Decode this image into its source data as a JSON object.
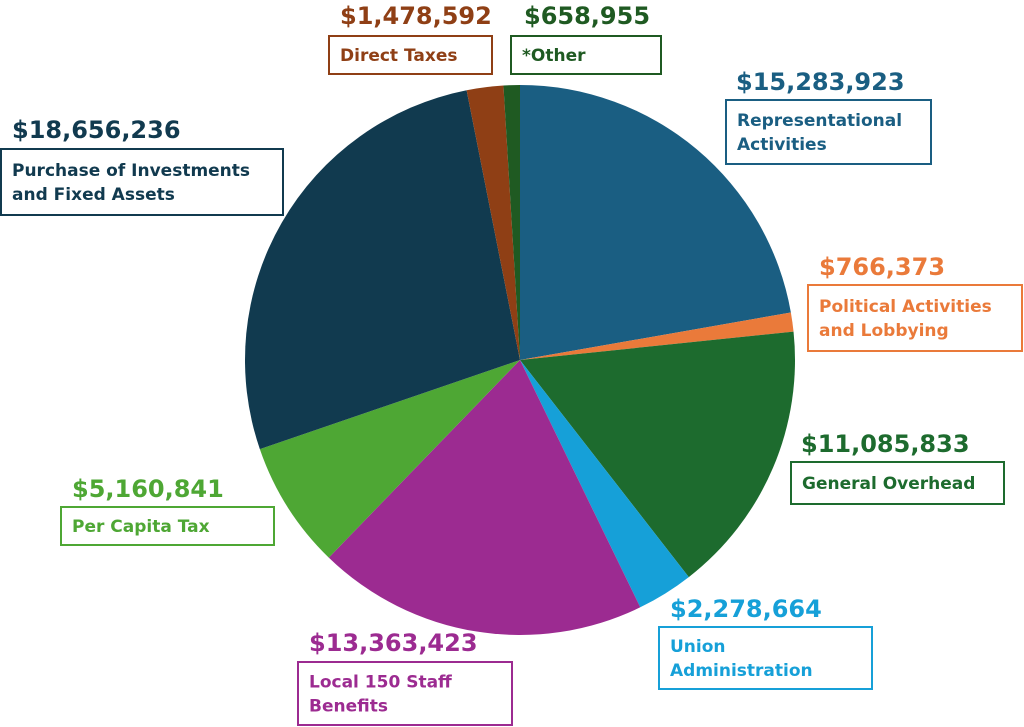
{
  "chart_data": {
    "type": "pie",
    "start_angle_deg": 0,
    "direction": "clockwise",
    "slices": [
      {
        "id": "representational",
        "value": 15283923,
        "amount_label": "$15,283,923",
        "label_lines": [
          "Representational",
          "Activities"
        ],
        "color": "#1a5e82"
      },
      {
        "id": "political",
        "value": 766373,
        "amount_label": "$766,373",
        "label_lines": [
          "Political Activities",
          "and Lobbying"
        ],
        "color": "#ea7a3a"
      },
      {
        "id": "general-overhead",
        "value": 11085833,
        "amount_label": "$11,085,833",
        "label_lines": [
          "General Overhead"
        ],
        "color": "#1d6b2e"
      },
      {
        "id": "union-administration",
        "value": 2278664,
        "amount_label": "$2,278,664",
        "label_lines": [
          "Union",
          "Administration"
        ],
        "color": "#16a0d8"
      },
      {
        "id": "staff-benefits",
        "value": 13363423,
        "amount_label": "$13,363,423",
        "label_lines": [
          "Local 150 Staff",
          "Benefits"
        ],
        "color": "#9c2b91"
      },
      {
        "id": "per-capita-tax",
        "value": 5160841,
        "amount_label": "$5,160,841",
        "label_lines": [
          "Per Capita Tax"
        ],
        "color": "#4ea734"
      },
      {
        "id": "investments",
        "value": 18656236,
        "amount_label": "$18,656,236",
        "label_lines": [
          "Purchase of Investments",
          "and Fixed Assets"
        ],
        "color": "#113a4f"
      },
      {
        "id": "direct-taxes",
        "value": 1478592,
        "amount_label": "$1,478,592",
        "label_lines": [
          "Direct Taxes"
        ],
        "color": "#8f3f15"
      },
      {
        "id": "other",
        "value": 658955,
        "amount_label": "$658,955",
        "label_lines": [
          "*Other"
        ],
        "color": "#1f5a22"
      }
    ]
  }
}
